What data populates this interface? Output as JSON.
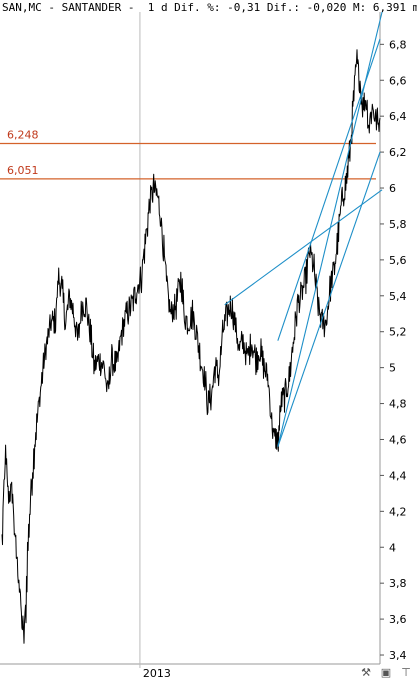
{
  "header": {
    "text": "SAN,MC - SANTANDER -  1 d Dif. %: -0,31 Dif.: -0,020 M: 6,391 m"
  },
  "toolbar": {
    "icons": [
      "wrench-icon",
      "save-icon",
      "pin-icon"
    ]
  },
  "colors": {
    "price": "#000000",
    "hline": "#d4622a",
    "trendline": "#1e8fc8",
    "grid": "#bbbbbb"
  },
  "chart_data": {
    "type": "line",
    "title": "SAN,MC - SANTANDER -  1 d",
    "ylim": [
      3.35,
      6.98
    ],
    "yticks": [
      "3,4",
      "3,6",
      "3,8",
      "4",
      "4,2",
      "4,4",
      "4,6",
      "4,8",
      "5",
      "5,2",
      "5,4",
      "5,6",
      "5,8",
      "6",
      "6,2",
      "6,4",
      "6,6",
      "6,8"
    ],
    "ytick_values": [
      3.4,
      3.6,
      3.8,
      4.0,
      4.2,
      4.4,
      4.6,
      4.8,
      5.0,
      5.2,
      5.4,
      5.6,
      5.8,
      6.0,
      6.2,
      6.4,
      6.6,
      6.8
    ],
    "xtick_labels": [
      "2013"
    ],
    "xtick_positions": [
      135
    ],
    "n_days": 370,
    "horizontal_lines": [
      {
        "value": 6.248,
        "label": "6,248"
      },
      {
        "value": 6.051,
        "label": "6,051"
      }
    ],
    "trendlines": [
      {
        "from": [
          270,
          4.56
        ],
        "to": [
          372,
          6.98
        ]
      },
      {
        "from": [
          270,
          4.56
        ],
        "to": [
          370,
          6.2
        ]
      },
      {
        "from": [
          270,
          5.15
        ],
        "to": [
          370,
          6.83
        ]
      },
      {
        "from": [
          218,
          5.35
        ],
        "to": [
          372,
          5.99
        ]
      }
    ],
    "series_points": [
      [
        0,
        4.05
      ],
      [
        3,
        4.5
      ],
      [
        6,
        4.3
      ],
      [
        10,
        4.3
      ],
      [
        13,
        4.0
      ],
      [
        16,
        3.85
      ],
      [
        19,
        3.6
      ],
      [
        21,
        3.5
      ],
      [
        23,
        3.65
      ],
      [
        25,
        4.0
      ],
      [
        28,
        4.3
      ],
      [
        32,
        4.6
      ],
      [
        36,
        4.8
      ],
      [
        40,
        5.0
      ],
      [
        44,
        5.15
      ],
      [
        48,
        5.25
      ],
      [
        52,
        5.25
      ],
      [
        55,
        5.5
      ],
      [
        58,
        5.45
      ],
      [
        62,
        5.25
      ],
      [
        66,
        5.4
      ],
      [
        70,
        5.3
      ],
      [
        74,
        5.15
      ],
      [
        78,
        5.35
      ],
      [
        82,
        5.35
      ],
      [
        86,
        5.2
      ],
      [
        90,
        5.0
      ],
      [
        95,
        5.05
      ],
      [
        100,
        5.0
      ],
      [
        103,
        4.85
      ],
      [
        107,
        5.05
      ],
      [
        112,
        5.0
      ],
      [
        117,
        5.2
      ],
      [
        122,
        5.3
      ],
      [
        127,
        5.35
      ],
      [
        132,
        5.45
      ],
      [
        136,
        5.5
      ],
      [
        140,
        5.7
      ],
      [
        144,
        5.9
      ],
      [
        148,
        6.0
      ],
      [
        152,
        5.95
      ],
      [
        155,
        5.85
      ],
      [
        158,
        5.65
      ],
      [
        161,
        5.45
      ],
      [
        165,
        5.3
      ],
      [
        170,
        5.35
      ],
      [
        175,
        5.5
      ],
      [
        178,
        5.3
      ],
      [
        182,
        5.25
      ],
      [
        186,
        5.3
      ],
      [
        190,
        5.2
      ],
      [
        194,
        5.05
      ],
      [
        198,
        4.95
      ],
      [
        201,
        4.8
      ],
      [
        205,
        4.85
      ],
      [
        208,
        5.0
      ],
      [
        212,
        4.95
      ],
      [
        216,
        5.2
      ],
      [
        220,
        5.3
      ],
      [
        224,
        5.35
      ],
      [
        228,
        5.25
      ],
      [
        232,
        5.1
      ],
      [
        236,
        5.15
      ],
      [
        240,
        5.05
      ],
      [
        244,
        5.15
      ],
      [
        248,
        5.05
      ],
      [
        252,
        5.1
      ],
      [
        256,
        5.0
      ],
      [
        260,
        4.95
      ],
      [
        263,
        4.75
      ],
      [
        266,
        4.6
      ],
      [
        270,
        4.6
      ],
      [
        273,
        4.8
      ],
      [
        277,
        4.85
      ],
      [
        281,
        4.95
      ],
      [
        285,
        5.15
      ],
      [
        289,
        5.35
      ],
      [
        293,
        5.4
      ],
      [
        297,
        5.5
      ],
      [
        301,
        5.65
      ],
      [
        305,
        5.55
      ],
      [
        309,
        5.35
      ],
      [
        313,
        5.25
      ],
      [
        317,
        5.25
      ],
      [
        321,
        5.45
      ],
      [
        325,
        5.55
      ],
      [
        329,
        5.75
      ],
      [
        333,
        5.95
      ],
      [
        337,
        6.05
      ],
      [
        341,
        6.25
      ],
      [
        344,
        6.5
      ],
      [
        347,
        6.7
      ],
      [
        350,
        6.6
      ],
      [
        353,
        6.45
      ],
      [
        356,
        6.5
      ],
      [
        359,
        6.35
      ],
      [
        362,
        6.45
      ],
      [
        365,
        6.4
      ],
      [
        368,
        6.35
      ],
      [
        370,
        6.39
      ]
    ]
  }
}
